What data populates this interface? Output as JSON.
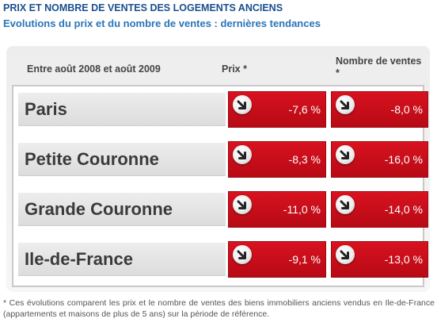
{
  "header": {
    "title": "PRIX ET NOMBRE DE VENTES DES LOGEMENTS ANCIENS",
    "subtitle": "Evolutions du prix et du nombre de ventes : dernières tendances"
  },
  "table": {
    "period_label": "Entre août 2008 et août 2009",
    "price_label": "Prix *",
    "sales_label": "Nombre de ventes *",
    "trend_icon": "down-arrow-icon",
    "accent_color": "#c8101c",
    "rows": [
      {
        "region": "Paris",
        "price": "-7,6 %",
        "sales": "-8,0 %"
      },
      {
        "region": "Petite Couronne",
        "price": "-8,3 %",
        "sales": "-16,0 %"
      },
      {
        "region": "Grande Couronne",
        "price": "-11,0 %",
        "sales": "-14,0 %"
      },
      {
        "region": "Ile-de-France",
        "price": "-9,1 %",
        "sales": "-13,0 %"
      }
    ]
  },
  "footnote": "* Ces évolutions comparent les prix et le nombre de ventes des biens immobiliers anciens vendus en Ile-de-France (appartements et maisons de plus de 5 ans) sur la période de référence."
}
